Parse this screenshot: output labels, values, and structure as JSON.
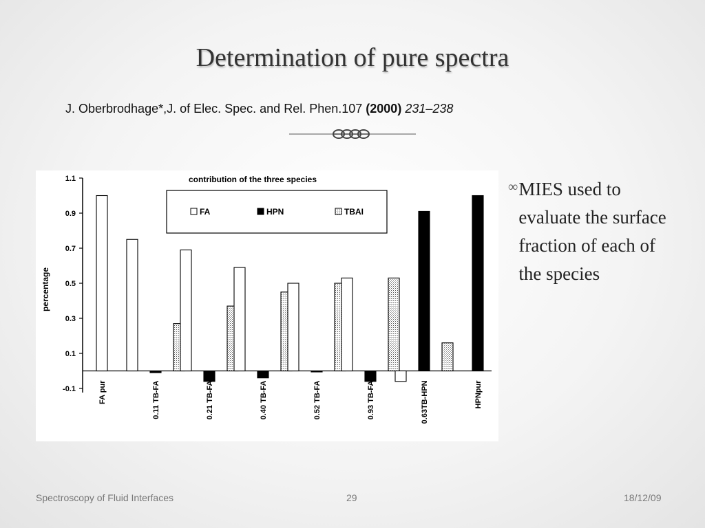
{
  "slide": {
    "title": "Determination of pure spectra",
    "citation": {
      "main": "J. Oberbrodhage*,J. of Elec. Spec. and Rel. Phen.107 ",
      "year": "(2000)",
      "pages": "231–238"
    },
    "bullets": [
      {
        "icon": "chain-link-icon",
        "text": "MIES used to evaluate the surface fraction of each of the species"
      }
    ],
    "footer": {
      "left": "Spectroscopy of Fluid Interfaces",
      "center": "29",
      "right": "18/12/09"
    }
  },
  "chart_data": {
    "type": "bar",
    "title": "contribution of the three species",
    "xlabel": "",
    "ylabel": "percentage",
    "ylim": [
      -0.1,
      1.1
    ],
    "yticks": [
      "1.1",
      "0.9",
      "0.7",
      "0.5",
      "0.3",
      "0.1",
      "-0.1"
    ],
    "categories": [
      "FA pur",
      "0.11 TB-FA",
      "0.21 TB-FA",
      "0.40 TB-FA",
      "0.52 TB-FA",
      "0.93 TB-FA",
      "0.63TB-HPN",
      "HPNpur"
    ],
    "series": [
      {
        "name": "FA",
        "values": [
          1.0,
          0.75,
          0.69,
          0.59,
          0.5,
          0.53,
          -0.06,
          null
        ]
      },
      {
        "name": "HPN",
        "values": [
          null,
          -0.01,
          -0.06,
          -0.04,
          -0.005,
          -0.06,
          0.91,
          1.0
        ]
      },
      {
        "name": "TBAI",
        "values": [
          null,
          0.27,
          0.37,
          0.45,
          0.5,
          0.53,
          0.16,
          null
        ]
      }
    ],
    "legend_position": "top",
    "grid": false
  }
}
